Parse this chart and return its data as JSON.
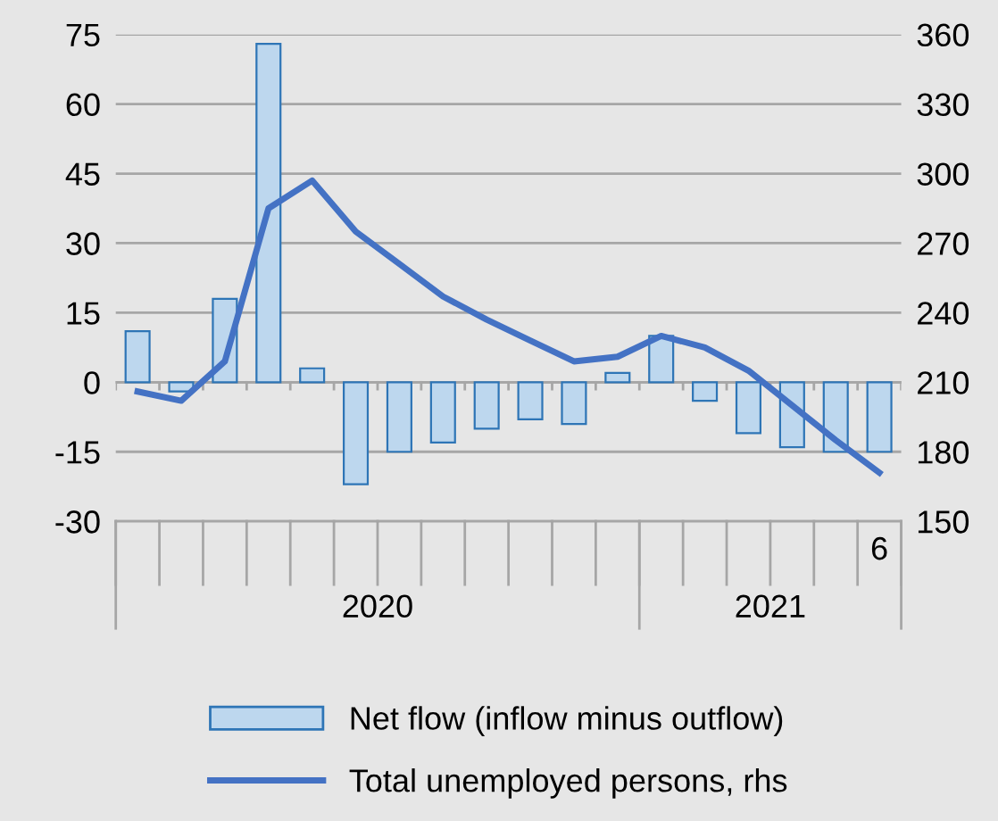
{
  "chart_data": {
    "type": "bar",
    "categories": [
      null,
      null,
      null,
      null,
      null,
      null,
      null,
      null,
      null,
      null,
      null,
      null,
      null,
      null,
      null,
      null,
      null,
      "6"
    ],
    "series": [
      {
        "name": "Net flow (inflow minus outflow)",
        "color": "#bdd7ee",
        "values": [
          11,
          -2,
          18,
          73,
          3,
          -22,
          -15,
          -13,
          -10,
          -8,
          -9,
          2,
          10,
          -4,
          -11,
          -14,
          -15,
          -15
        ]
      },
      {
        "name": "Total unemployed persons, rhs",
        "type": "line",
        "axis": "y2",
        "color": "#4472c4",
        "values": [
          206,
          202,
          219,
          285,
          297,
          275,
          261,
          247,
          237,
          228,
          219,
          221,
          230,
          225,
          215,
          200,
          185,
          171
        ]
      }
    ],
    "ylim": [
      -30,
      75
    ],
    "yticks": [
      -30,
      -15,
      0,
      15,
      30,
      45,
      60,
      75
    ],
    "y2lim": [
      150,
      360
    ],
    "y2ticks": [
      150,
      180,
      210,
      240,
      270,
      300,
      330,
      360
    ],
    "annotations": [
      "2020",
      "2021"
    ],
    "grid": "y",
    "legend": "bottom",
    "marker": "none",
    "line_style": "solid"
  }
}
